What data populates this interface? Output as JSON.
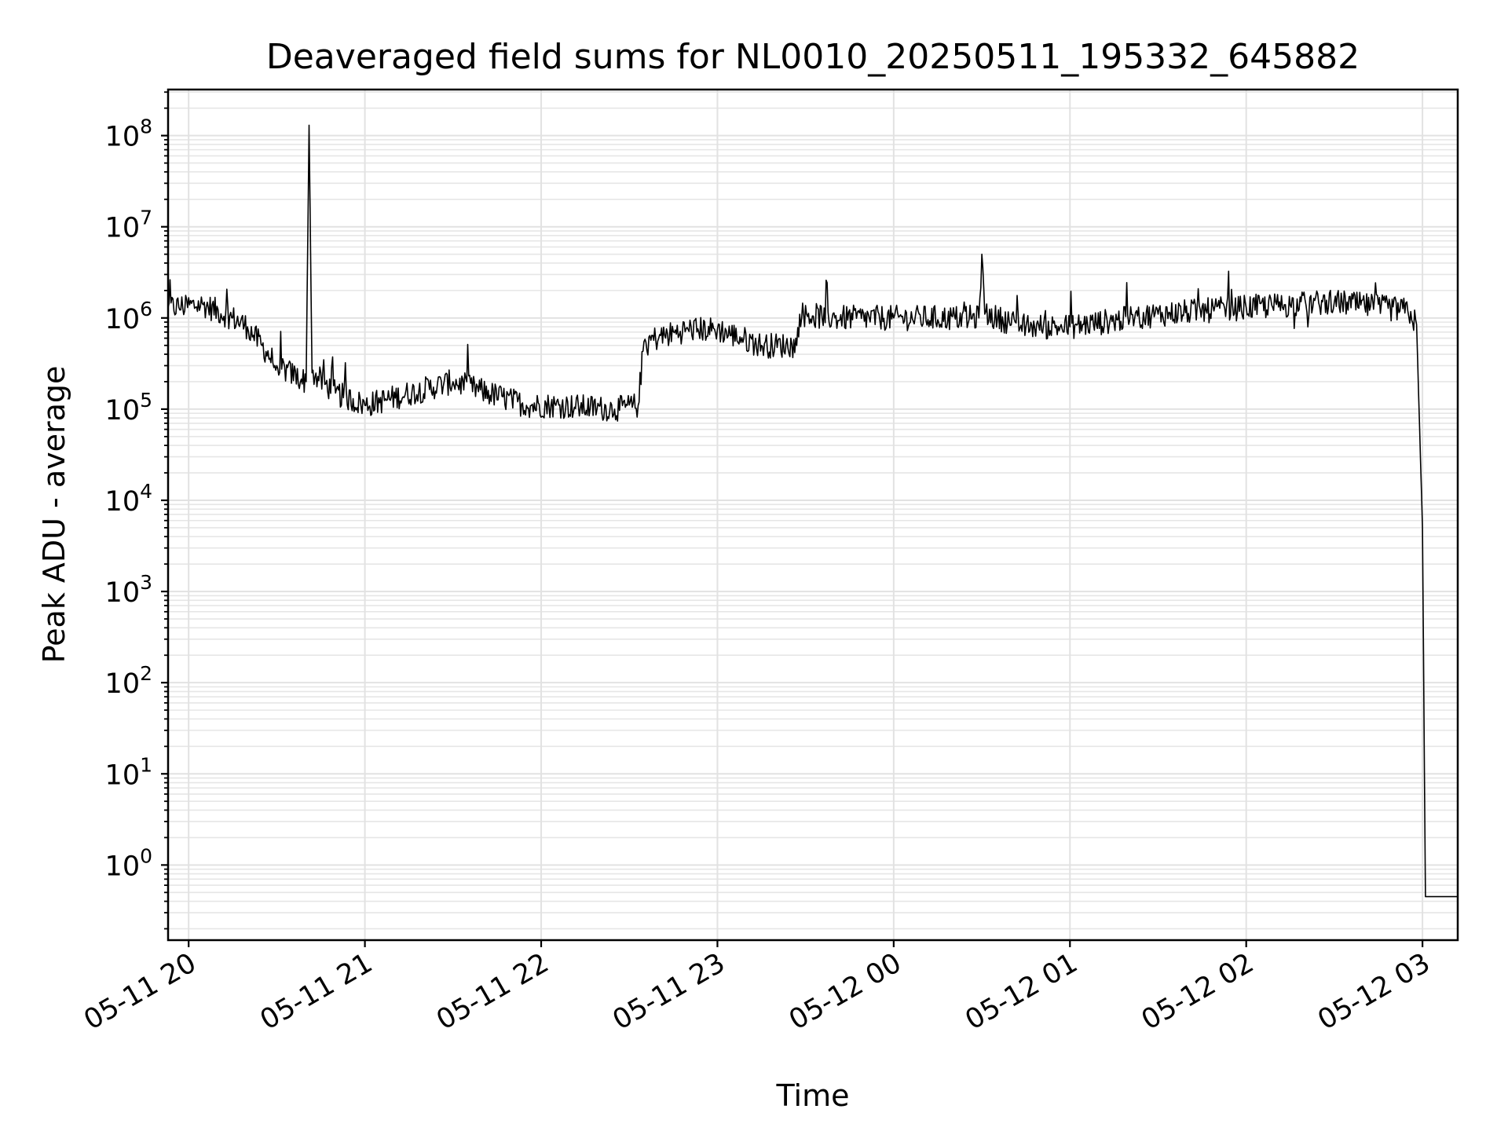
{
  "chart_data": {
    "type": "line",
    "title": "Deaveraged field sums for NL0010_20250511_195332_645882",
    "xlabel": "Time",
    "ylabel": "Peak ADU - average",
    "x_ticks": [
      "05-11 20",
      "05-11 21",
      "05-11 22",
      "05-11 23",
      "05-12 00",
      "05-12 01",
      "05-12 02",
      "05-12 03"
    ],
    "y_ticks": [
      {
        "base": "10",
        "exp": "0"
      },
      {
        "base": "10",
        "exp": "1"
      },
      {
        "base": "10",
        "exp": "2"
      },
      {
        "base": "10",
        "exp": "3"
      },
      {
        "base": "10",
        "exp": "4"
      },
      {
        "base": "10",
        "exp": "5"
      },
      {
        "base": "10",
        "exp": "6"
      },
      {
        "base": "10",
        "exp": "7"
      },
      {
        "base": "10",
        "exp": "8"
      }
    ],
    "xlim": [
      "2025-05-11 19:53",
      "2025-05-12 03:12"
    ],
    "ylim": [
      0.15,
      320000000
    ],
    "y_scale": "log",
    "grid": true,
    "line_color": "#000000",
    "series": [
      {
        "x": [
          "2025-05-11 19:53",
          "2025-05-11 20:05",
          "2025-05-11 20:15",
          "2025-05-11 20:20",
          "2025-05-11 20:30",
          "2025-05-11 20:40",
          "2025-05-11 20:41",
          "2025-05-11 20:42",
          "2025-05-11 20:50",
          "2025-05-11 21:00",
          "2025-05-11 21:30",
          "2025-05-11 21:55",
          "2025-05-11 22:05",
          "2025-05-11 22:25",
          "2025-05-11 22:33",
          "2025-05-11 22:35",
          "2025-05-11 22:50",
          "2025-05-11 23:00",
          "2025-05-11 23:15",
          "2025-05-11 23:27",
          "2025-05-11 23:28",
          "2025-05-11 23:40",
          "2025-05-12 00:00",
          "2025-05-12 00:29",
          "2025-05-12 00:30",
          "2025-05-12 00:31",
          "2025-05-12 00:45",
          "2025-05-12 01:00",
          "2025-05-12 01:30",
          "2025-05-12 02:00",
          "2025-05-12 02:30",
          "2025-05-12 02:55",
          "2025-05-12 02:58",
          "2025-05-12 03:00",
          "2025-05-12 03:01",
          "2025-05-12 03:12"
        ],
        "values": [
          1300000,
          1400000,
          1000000,
          800000,
          300000,
          200000,
          130000000,
          250000,
          150000,
          110000,
          200000,
          110000,
          110000,
          100000,
          110000,
          550000,
          750000,
          750000,
          500000,
          500000,
          1100000,
          1000000,
          1000000,
          1000000,
          5000000,
          1100000,
          800000,
          800000,
          1100000,
          1300000,
          1500000,
          1200000,
          850000,
          5000,
          0.45,
          0.45
        ]
      }
    ]
  }
}
